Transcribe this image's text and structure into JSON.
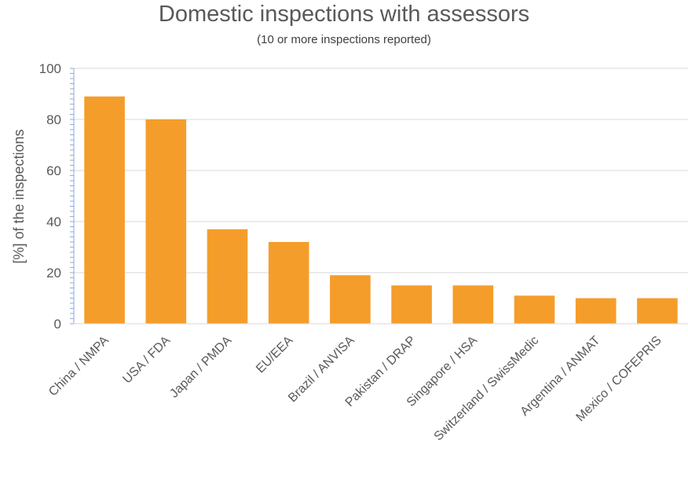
{
  "chart_data": {
    "type": "bar",
    "title": "Domestic inspections with assessors",
    "subtitle": "(10 or more inspections reported)",
    "xlabel": "",
    "ylabel": "[%] of the inspections",
    "ylim": [
      0,
      100
    ],
    "yticks": [
      0,
      20,
      40,
      60,
      80,
      100
    ],
    "grid": true,
    "legend": "none",
    "bar_color": "#F59D2A",
    "categories": [
      "China / NMPA",
      "USA / FDA",
      "Japan / PMDA",
      "EU/EEA",
      "Brazil / ANVISA",
      "Pakistan / DRAP",
      "Singapore / HSA",
      "Switzerland / SwissMedic",
      "Argentina / ANMAT",
      "Mexico / COFEPRIS"
    ],
    "values": [
      89,
      80,
      37,
      32,
      19,
      15,
      15,
      11,
      10,
      10
    ]
  }
}
